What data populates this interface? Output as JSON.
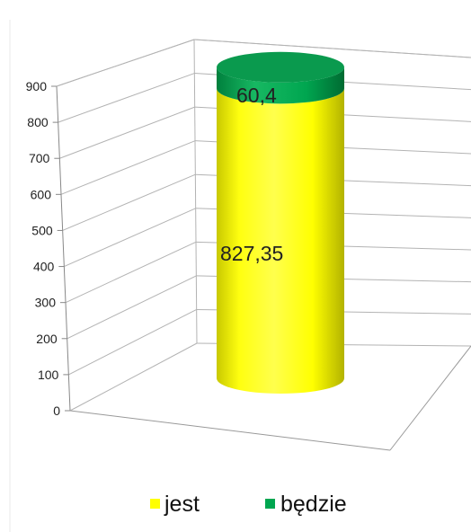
{
  "chart_data": {
    "type": "bar",
    "stacked": true,
    "three_d": true,
    "shape": "cylinder",
    "categories": [
      ""
    ],
    "series": [
      {
        "name": "jest",
        "values": [
          827.35
        ],
        "label": "827,35",
        "color": "#ffff00"
      },
      {
        "name": "będzie",
        "values": [
          60.4
        ],
        "label": "60,4",
        "color": "#00a650"
      }
    ],
    "y_ticks": [
      "0",
      "100",
      "200",
      "300",
      "400",
      "500",
      "600",
      "700",
      "800",
      "900"
    ],
    "ylim": [
      0,
      900
    ],
    "grid": true,
    "legend_position": "bottom"
  }
}
